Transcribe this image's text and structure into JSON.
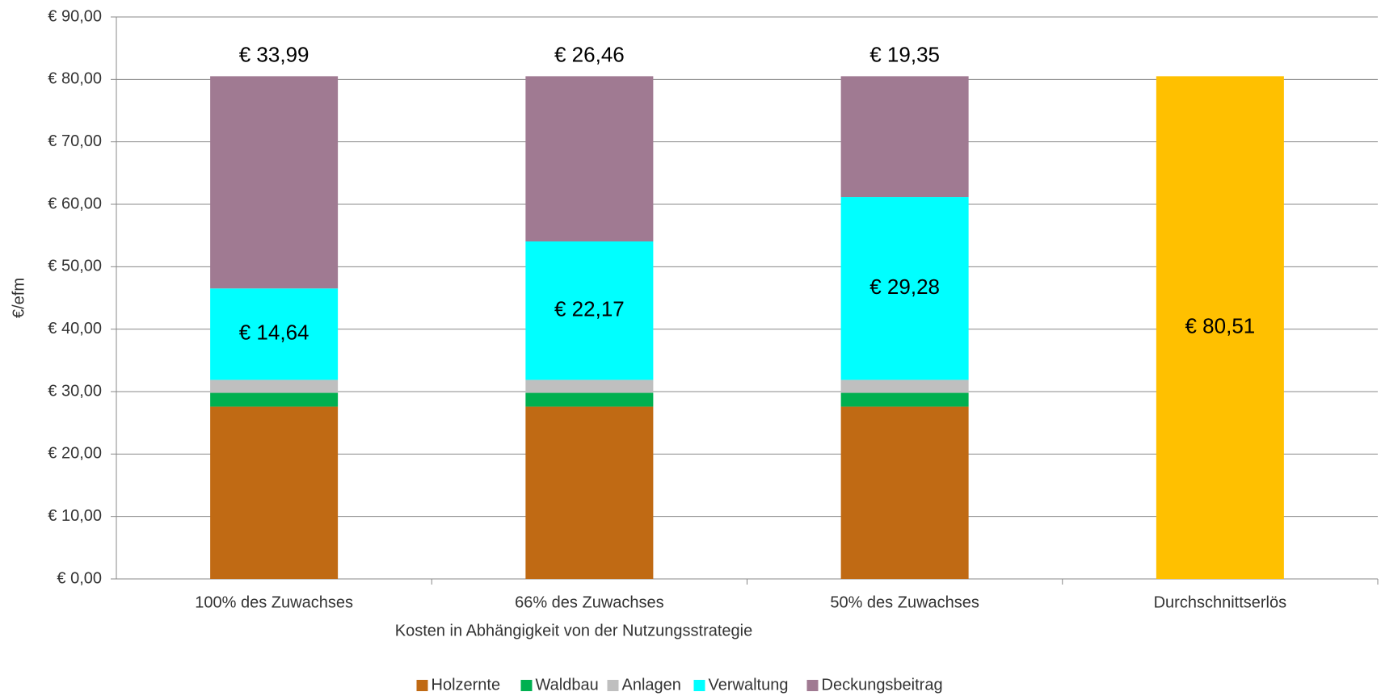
{
  "chart_data": {
    "type": "stacked_bar",
    "y_label": "€/efm",
    "x_label": "Kosten in Abhängigkeit von der Nutzungsstrategie",
    "categories": [
      "100% des Zuwachses",
      "66% des Zuwachses",
      "50% des Zuwachses",
      "Durchschnittserlös"
    ],
    "series": [
      {
        "name": "Holzernte",
        "color": "#c06a14",
        "values": [
          27.6,
          27.6,
          27.6,
          null
        ]
      },
      {
        "name": "Waldbau",
        "color": "#00b050",
        "values": [
          2.2,
          2.2,
          2.2,
          null
        ]
      },
      {
        "name": "Anlagen",
        "color": "#bfbfbf",
        "values": [
          2.08,
          2.08,
          2.08,
          null
        ]
      },
      {
        "name": "Verwaltung",
        "color": "#00ffff",
        "values": [
          14.64,
          22.17,
          29.28,
          null
        ],
        "value_labels": [
          "€ 14,64",
          "€ 22,17",
          "€ 29,28",
          null
        ]
      },
      {
        "name": "Deckungsbeitrag",
        "color": "#a07a92",
        "values": [
          33.99,
          26.46,
          19.35,
          null
        ],
        "value_labels": [
          "€ 33,99",
          "€ 26,46",
          "€ 19,35",
          null
        ]
      },
      {
        "color": "#ffc000",
        "values": [
          null,
          null,
          null,
          80.51
        ],
        "value_labels": [
          null,
          null,
          null,
          "€ 80,51"
        ]
      }
    ],
    "ylim": [
      0,
      90
    ],
    "yticks": [
      {
        "value": 0,
        "label": "€ 0,00"
      },
      {
        "value": 10,
        "label": "€ 10,00"
      },
      {
        "value": 20,
        "label": "€ 20,00"
      },
      {
        "value": 30,
        "label": "€ 30,00"
      },
      {
        "value": 40,
        "label": "€ 40,00"
      },
      {
        "value": 50,
        "label": "€ 50,00"
      },
      {
        "value": 60,
        "label": "€ 60,00"
      },
      {
        "value": 70,
        "label": "€ 70,00"
      },
      {
        "value": 80,
        "label": "€ 80,00"
      },
      {
        "value": 90,
        "label": "€ 90,00"
      }
    ],
    "grid": true,
    "legend": "bottom"
  }
}
